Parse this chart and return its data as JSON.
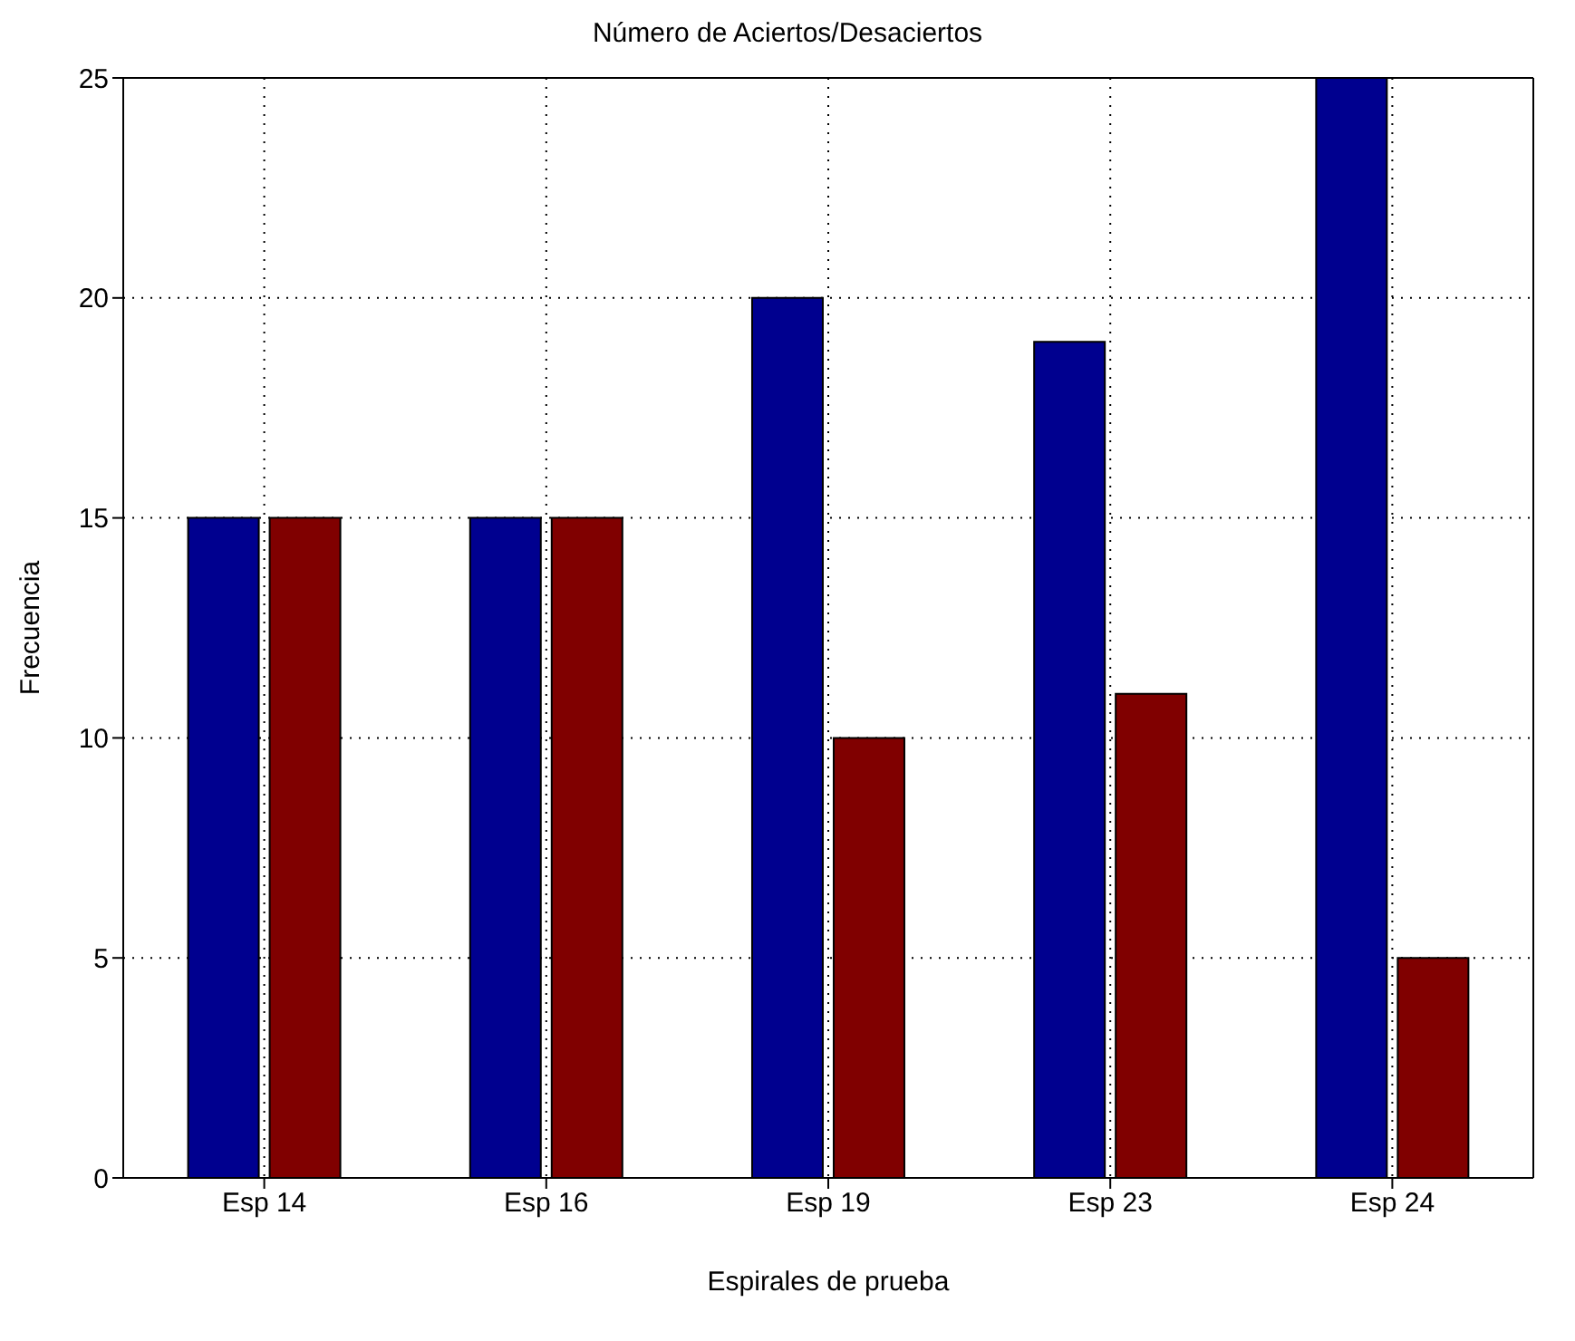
{
  "chart_data": {
    "type": "bar",
    "title": "Número de Aciertos/Desaciertos",
    "xlabel": "Espirales de prueba",
    "ylabel": "Frecuencia",
    "categories": [
      "Esp 14",
      "Esp 16",
      "Esp 19",
      "Esp 23",
      "Esp 24"
    ],
    "series": [
      {
        "color": "#00008f",
        "values": [
          15,
          15,
          20,
          19,
          25
        ]
      },
      {
        "color": "#800000",
        "values": [
          15,
          15,
          10,
          11,
          5
        ]
      }
    ],
    "ylim": [
      0,
      25
    ],
    "yticks": [
      0,
      5,
      10,
      15,
      20,
      25
    ],
    "grid": true,
    "legend": false
  }
}
